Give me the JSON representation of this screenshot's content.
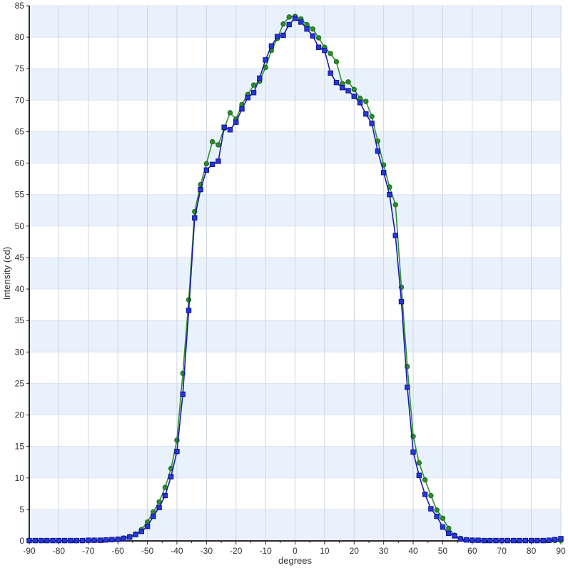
{
  "chart_data": {
    "type": "line",
    "title": "",
    "xlabel": "degrees",
    "ylabel": "Intensity (cd)",
    "xlim": [
      -90,
      90
    ],
    "ylim": [
      0,
      85
    ],
    "x_major_tick_step": 10,
    "x_minor_tick_step": 5,
    "y_tick_step": 5,
    "grid": true,
    "legend": "none",
    "band_colors": [
      "#e9f2fc",
      "#ffffff"
    ],
    "gridline_color_vertical": "#ccd6e2",
    "gridline_color_horizontal": "#dae3ee",
    "axis_color": "#2b2b2b",
    "tick_label_color": "#333333",
    "x_ticks": [
      -90,
      -80,
      -70,
      -60,
      -50,
      -40,
      -30,
      -20,
      -10,
      0,
      10,
      20,
      30,
      40,
      50,
      60,
      70,
      80,
      90
    ],
    "y_ticks": [
      0,
      5,
      10,
      15,
      20,
      25,
      30,
      35,
      40,
      45,
      50,
      55,
      60,
      65,
      70,
      75,
      80,
      85
    ],
    "x": [
      -90,
      -88,
      -86,
      -84,
      -82,
      -80,
      -78,
      -76,
      -74,
      -72,
      -70,
      -68,
      -66,
      -64,
      -62,
      -60,
      -58,
      -56,
      -54,
      -52,
      -50,
      -48,
      -46,
      -44,
      -42,
      -40,
      -38,
      -36,
      -34,
      -32,
      -30,
      -28,
      -26,
      -24,
      -22,
      -20,
      -18,
      -16,
      -14,
      -12,
      -10,
      -8,
      -6,
      -4,
      -2,
      0,
      2,
      4,
      6,
      8,
      10,
      12,
      14,
      16,
      18,
      20,
      22,
      24,
      26,
      28,
      30,
      32,
      34,
      36,
      38,
      40,
      42,
      44,
      46,
      48,
      50,
      52,
      54,
      56,
      58,
      60,
      62,
      64,
      66,
      68,
      70,
      72,
      74,
      76,
      78,
      80,
      82,
      84,
      86,
      88,
      90
    ],
    "series": [
      {
        "name": "green-series",
        "marker": "circle",
        "line_color": "#2f8f2f",
        "marker_fill": "#2e8b2e",
        "marker_stroke": "#1d6b1d",
        "values": [
          0.05,
          0.05,
          0.05,
          0.05,
          0.05,
          0.05,
          0.05,
          0.05,
          0.05,
          0.05,
          0.1,
          0.1,
          0.1,
          0.15,
          0.2,
          0.3,
          0.45,
          0.7,
          1.1,
          1.8,
          3.0,
          4.6,
          6.2,
          8.5,
          11.5,
          16.0,
          26.6,
          38.3,
          52.3,
          56.6,
          59.9,
          63.4,
          62.9,
          65.5,
          68.0,
          67.0,
          69.3,
          70.9,
          72.4,
          73.0,
          75.2,
          77.9,
          79.8,
          82.1,
          83.2,
          83.3,
          82.9,
          82.0,
          81.3,
          79.9,
          78.4,
          77.4,
          76.1,
          72.6,
          72.9,
          71.7,
          70.3,
          69.8,
          67.4,
          63.5,
          59.7,
          56.2,
          53.4,
          40.3,
          27.7,
          16.6,
          12.4,
          9.7,
          7.2,
          4.9,
          3.6,
          2.0,
          0.9,
          0.4,
          0.2,
          0.15,
          0.1,
          0.05,
          0.05,
          0.05,
          0.05,
          0.05,
          0.05,
          0.05,
          0.05,
          0.05,
          0.05,
          0.05,
          0.05,
          0.05,
          0.05
        ]
      },
      {
        "name": "blue-series",
        "marker": "square",
        "line_color": "#1a1aa8",
        "marker_fill": "#2438d8",
        "marker_stroke": "#10108c",
        "values": [
          0.05,
          0.05,
          0.05,
          0.05,
          0.05,
          0.05,
          0.05,
          0.05,
          0.05,
          0.05,
          0.1,
          0.1,
          0.1,
          0.15,
          0.2,
          0.25,
          0.4,
          0.6,
          1.0,
          1.5,
          2.3,
          3.9,
          5.3,
          7.2,
          10.2,
          14.2,
          23.3,
          36.6,
          51.3,
          55.8,
          58.9,
          59.8,
          60.3,
          65.7,
          65.3,
          66.5,
          68.6,
          70.4,
          71.2,
          73.5,
          76.4,
          78.6,
          80.1,
          80.3,
          82.0,
          83.0,
          82.4,
          81.3,
          80.2,
          78.4,
          77.9,
          74.3,
          72.8,
          72.0,
          71.5,
          70.6,
          69.6,
          67.8,
          66.3,
          61.9,
          58.5,
          55.0,
          48.5,
          38.0,
          24.4,
          14.1,
          10.4,
          7.4,
          5.1,
          3.9,
          2.2,
          1.2,
          0.8,
          0.3,
          0.15,
          0.1,
          0.1,
          0.05,
          0.05,
          0.05,
          0.05,
          0.05,
          0.05,
          0.05,
          0.05,
          0.05,
          0.05,
          0.05,
          0.1,
          0.2,
          0.35
        ]
      }
    ]
  }
}
